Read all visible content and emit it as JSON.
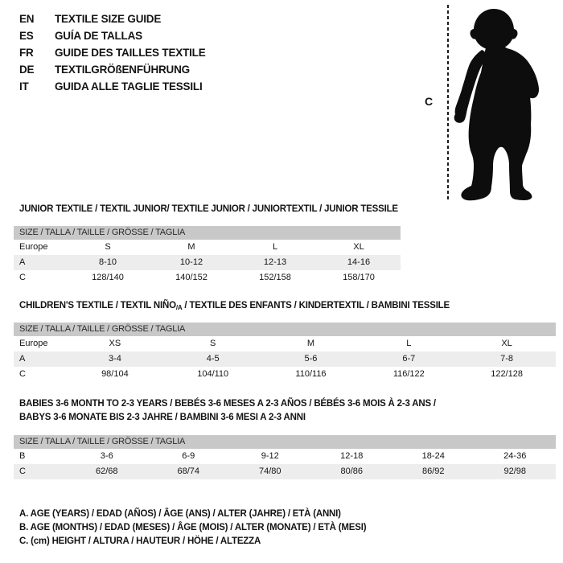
{
  "colors": {
    "ink": "#141414",
    "header_bar": "#c8c8c8",
    "row_stripe": "#ededed",
    "figure": "#0d0d0d"
  },
  "languages": {
    "items": [
      {
        "code": "EN",
        "label": "TEXTILE SIZE GUIDE"
      },
      {
        "code": "ES",
        "label": "GUÍA DE TALLAS"
      },
      {
        "code": "FR",
        "label": "GUIDE DES TAILLES TEXTILE"
      },
      {
        "code": "DE",
        "label": "TEXTILGRÖßENFÜHRUNG"
      },
      {
        "code": "IT",
        "label": "GUIDA ALLE TAGLIE TESSILI"
      }
    ]
  },
  "figure": {
    "measure_label": "C",
    "depicts": "toddler-silhouette"
  },
  "sections": [
    {
      "title_lines": [
        [
          {
            "t": "JUNIOR TEXTILE / TEXTIL JUNIOR/ TEXTILE JUNIOR / JUNIORTEXTIL / JUNIOR TESSILE"
          }
        ]
      ],
      "size_header": "SIZE / TALLA / TAILLE / GRÖSSE / TAGLIA",
      "rows": [
        {
          "label": "Europe",
          "values": [
            "S",
            "M",
            "L",
            "XL"
          ]
        },
        {
          "label": "A",
          "values": [
            "8-10",
            "10-12",
            "12-13",
            "14-16"
          ]
        },
        {
          "label": "C",
          "values": [
            "128/140",
            "140/152",
            "152/158",
            "158/170"
          ]
        }
      ]
    },
    {
      "title_lines": [
        [
          {
            "t": "CHILDREN'S TEXTILE / TEXTIL NIÑO"
          },
          {
            "t": "/A",
            "sub": true
          },
          {
            "t": " / TEXTILE DES ENFANTS / KINDERTEXTIL / BAMBINI TESSILE"
          }
        ]
      ],
      "size_header": "SIZE / TALLA / TAILLE / GRÖSSE / TAGLIA",
      "rows": [
        {
          "label": "Europe",
          "values": [
            "XS",
            "S",
            "M",
            "L",
            "XL"
          ]
        },
        {
          "label": "A",
          "values": [
            "3-4",
            "4-5",
            "5-6",
            "6-7",
            "7-8"
          ]
        },
        {
          "label": "C",
          "values": [
            "98/104",
            "104/110",
            "110/116",
            "116/122",
            "122/128"
          ]
        }
      ]
    },
    {
      "title_lines": [
        [
          {
            "t": "BABIES 3-6 MONTH TO 2-3 YEARS / BEBÉS 3-6 MESES A 2-3 AÑOS / BÉBÉS 3-6 MOIS À 2-3 ANS /"
          }
        ],
        [
          {
            "t": "BABYS 3-6 MONATE BIS 2-3 JAHRE / BAMBINI 3-6 MESI A 2-3 ANNI"
          }
        ]
      ],
      "size_header": "SIZE / TALLA / TAILLE / GRÖSSE / TAGLIA",
      "rows": [
        {
          "label": "B",
          "values": [
            "3-6",
            "6-9",
            "9-12",
            "12-18",
            "18-24",
            "24-36"
          ]
        },
        {
          "label": "C",
          "values": [
            "62/68",
            "68/74",
            "74/80",
            "80/86",
            "86/92",
            "92/98"
          ]
        }
      ]
    }
  ],
  "legend": {
    "items": [
      "A. AGE (YEARS) / EDAD (AÑOS) / ÂGE (ANS) / ALTER (JAHRE) / ETÀ (ANNI)",
      "B. AGE (MONTHS) / EDAD (MESES) / ÂGE (MOIS) / ALTER (MONATE) / ETÀ (MESI)",
      "C. (cm) HEIGHT / ALTURA / HAUTEUR / HÖHE / ALTEZZA"
    ]
  }
}
